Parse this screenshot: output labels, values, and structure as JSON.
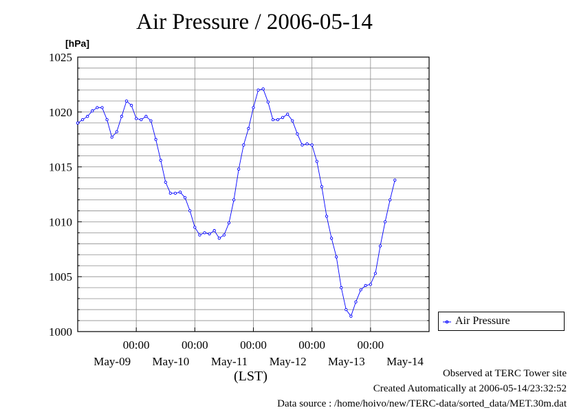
{
  "chart_data": {
    "type": "line",
    "title": "Air Pressure / 2006-05-14",
    "ylabel": "[hPa]",
    "xlabel": "(LST)",
    "ylim": [
      1000,
      1025
    ],
    "yticks": [
      1000,
      1005,
      1010,
      1015,
      1020,
      1025
    ],
    "xlim": [
      0,
      144
    ],
    "xticks": [
      {
        "x": 24,
        "time": "00:00",
        "date": "May-09"
      },
      {
        "x": 48,
        "time": "00:00",
        "date": "May-10"
      },
      {
        "x": 72,
        "time": "00:00",
        "date": "May-11"
      },
      {
        "x": 96,
        "time": "00:00",
        "date": "May-12"
      },
      {
        "x": 120,
        "time": "00:00",
        "date": "May-13"
      }
    ],
    "x_axis_trailing_date": "May-14",
    "grid": true,
    "legend_position": "bottom-right-outside",
    "series": [
      {
        "name": "Air Pressure",
        "color": "#0000ff",
        "points": [
          [
            0,
            1019.0
          ],
          [
            2,
            1019.3
          ],
          [
            4,
            1019.6
          ],
          [
            6,
            1020.1
          ],
          [
            8,
            1020.4
          ],
          [
            10,
            1020.4
          ],
          [
            12,
            1019.3
          ],
          [
            14,
            1017.7
          ],
          [
            16,
            1018.2
          ],
          [
            18,
            1019.6
          ],
          [
            20,
            1021.0
          ],
          [
            22,
            1020.6
          ],
          [
            24,
            1019.4
          ],
          [
            26,
            1019.3
          ],
          [
            28,
            1019.6
          ],
          [
            30,
            1019.2
          ],
          [
            32,
            1017.5
          ],
          [
            34,
            1015.6
          ],
          [
            36,
            1013.6
          ],
          [
            38,
            1012.6
          ],
          [
            40,
            1012.6
          ],
          [
            42,
            1012.7
          ],
          [
            44,
            1012.2
          ],
          [
            46,
            1011.0
          ],
          [
            48,
            1009.5
          ],
          [
            50,
            1008.8
          ],
          [
            52,
            1009.0
          ],
          [
            54,
            1008.9
          ],
          [
            56,
            1009.2
          ],
          [
            58,
            1008.5
          ],
          [
            60,
            1008.8
          ],
          [
            62,
            1009.9
          ],
          [
            64,
            1012.0
          ],
          [
            66,
            1014.8
          ],
          [
            68,
            1017.0
          ],
          [
            70,
            1018.5
          ],
          [
            72,
            1020.4
          ],
          [
            74,
            1022.0
          ],
          [
            76,
            1022.1
          ],
          [
            78,
            1020.9
          ],
          [
            80,
            1019.3
          ],
          [
            82,
            1019.3
          ],
          [
            84,
            1019.5
          ],
          [
            86,
            1019.8
          ],
          [
            88,
            1019.2
          ],
          [
            90,
            1018.0
          ],
          [
            92,
            1017.0
          ],
          [
            94,
            1017.1
          ],
          [
            96,
            1017.0
          ],
          [
            98,
            1015.5
          ],
          [
            100,
            1013.2
          ],
          [
            102,
            1010.5
          ],
          [
            104,
            1008.5
          ],
          [
            106,
            1006.8
          ],
          [
            108,
            1004.0
          ],
          [
            110,
            1002.0
          ],
          [
            112,
            1001.4
          ],
          [
            114,
            1002.7
          ],
          [
            116,
            1003.8
          ],
          [
            118,
            1004.2
          ],
          [
            120,
            1004.3
          ],
          [
            122,
            1005.3
          ],
          [
            124,
            1007.8
          ],
          [
            126,
            1010.0
          ],
          [
            128,
            1012.0
          ],
          [
            130,
            1013.8
          ]
        ]
      }
    ]
  },
  "legend": {
    "label": "Air Pressure"
  },
  "footer": {
    "line1": "Observed at TERC Tower site",
    "line2": "Created Automatically at 2006-05-14/23:32:52",
    "line3": "Data source : /home/hoivo/new/TERC-data/sorted_data/MET.30m.dat"
  }
}
